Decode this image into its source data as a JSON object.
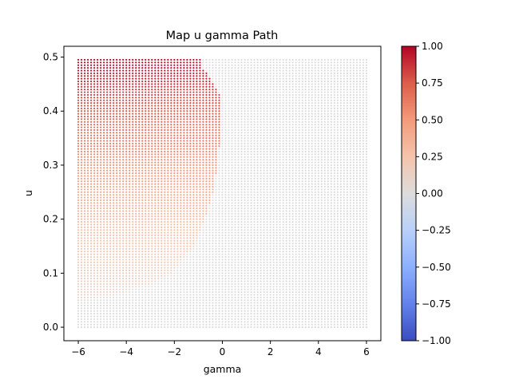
{
  "chart_data": {
    "type": "scatter",
    "title": "Map u gamma Path",
    "xlabel": "gamma",
    "ylabel": "u",
    "xlim": [
      -6.6,
      6.6
    ],
    "ylim": [
      -0.025,
      0.52
    ],
    "xticks": [
      -6,
      -4,
      -2,
      0,
      2,
      4,
      6
    ],
    "xtick_labels": [
      "−6",
      "−4",
      "−2",
      "0",
      "2",
      "4",
      "6"
    ],
    "yticks": [
      0.0,
      0.1,
      0.2,
      0.3,
      0.4,
      0.5
    ],
    "ytick_labels": [
      "0.0",
      "0.1",
      "0.2",
      "0.3",
      "0.4",
      "0.5"
    ],
    "grid": {
      "gamma_min": -6,
      "gamma_max": 6,
      "gamma_steps": 91,
      "u_min": 0.0,
      "u_max": 0.495,
      "u_steps": 100
    },
    "value_description": "value = 0 where no path; inside region gamma < boundary(u), value increases with u from about 0.1 at u=0.05 to 1.0 at u=0.495",
    "boundary": [
      {
        "u": 0.05,
        "gamma": -6.0
      },
      {
        "u": 0.06,
        "gamma": -4.5
      },
      {
        "u": 0.08,
        "gamma": -3.0
      },
      {
        "u": 0.1,
        "gamma": -2.1
      },
      {
        "u": 0.15,
        "gamma": -1.2
      },
      {
        "u": 0.2,
        "gamma": -0.7
      },
      {
        "u": 0.25,
        "gamma": -0.4
      },
      {
        "u": 0.3,
        "gamma": -0.2
      },
      {
        "u": 0.35,
        "gamma": -0.1
      },
      {
        "u": 0.4,
        "gamma": -0.05
      },
      {
        "u": 0.43,
        "gamma": -0.05
      },
      {
        "u": 0.45,
        "gamma": -0.4
      },
      {
        "u": 0.465,
        "gamma": -0.6
      },
      {
        "u": 0.48,
        "gamma": -0.8
      },
      {
        "u": 0.495,
        "gamma": -0.9
      }
    ],
    "colorbar": {
      "cmap": "coolwarm",
      "vmin": -1.0,
      "vmax": 1.0,
      "ticks": [
        1.0,
        0.75,
        0.5,
        0.25,
        0.0,
        -0.25,
        -0.5,
        -0.75,
        -1.0
      ],
      "tick_labels": [
        "1.00",
        "0.75",
        "0.50",
        "0.25",
        "0.00",
        "−0.25",
        "−0.50",
        "−0.75",
        "−1.00"
      ]
    }
  }
}
